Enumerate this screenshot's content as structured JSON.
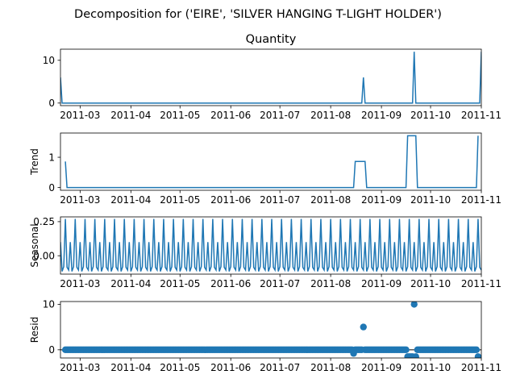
{
  "figure": {
    "suptitle": "Decomposition for ('EIRE', 'SILVER HANGING T-LIGHT HOLDER')",
    "line_color": "#1f77b4"
  },
  "chart_data": [
    {
      "type": "line",
      "title": "Quantity",
      "ylabel": "",
      "x_ticks": [
        "2011-03",
        "2011-04",
        "2011-05",
        "2011-06",
        "2011-07",
        "2011-08",
        "2011-09",
        "2011-10",
        "2011-11"
      ],
      "xlim": [
        "2011-02-17",
        "2011-11-01"
      ],
      "y_ticks": [
        0,
        10
      ],
      "ylim": [
        -0.6,
        12.6
      ],
      "x_range": [
        "2011-02-17",
        "2011-11-01"
      ],
      "points": [
        [
          "2011-02-17",
          6
        ],
        [
          "2011-02-18",
          0
        ],
        [
          "2011-08-20",
          0
        ],
        [
          "2011-08-21",
          6
        ],
        [
          "2011-08-22",
          0
        ],
        [
          "2011-09-20",
          0
        ],
        [
          "2011-09-21",
          12
        ],
        [
          "2011-09-22",
          0
        ],
        [
          "2011-10-31",
          0
        ],
        [
          "2011-11-01",
          12
        ]
      ]
    },
    {
      "type": "line",
      "title": "",
      "ylabel": "Trend",
      "x_ticks": [
        "2011-03",
        "2011-04",
        "2011-05",
        "2011-06",
        "2011-07",
        "2011-08",
        "2011-09",
        "2011-10",
        "2011-11"
      ],
      "xlim": [
        "2011-02-17",
        "2011-11-01"
      ],
      "y_ticks": [
        0,
        1
      ],
      "ylim": [
        -0.09,
        1.8
      ],
      "points": [
        [
          "2011-02-20",
          0.86
        ],
        [
          "2011-02-21",
          0
        ],
        [
          "2011-08-15",
          0
        ],
        [
          "2011-08-16",
          0.86
        ],
        [
          "2011-08-22",
          0.86
        ],
        [
          "2011-08-23",
          0
        ],
        [
          "2011-09-16",
          0
        ],
        [
          "2011-09-17",
          1.71
        ],
        [
          "2011-09-22",
          1.71
        ],
        [
          "2011-09-23",
          0
        ],
        [
          "2011-10-29",
          0
        ],
        [
          "2011-10-30",
          1.71
        ]
      ]
    },
    {
      "type": "line",
      "title": "",
      "ylabel": "Seasonal",
      "x_ticks": [
        "2011-03",
        "2011-04",
        "2011-05",
        "2011-06",
        "2011-07",
        "2011-08",
        "2011-09",
        "2011-10",
        "2011-11"
      ],
      "xlim": [
        "2011-02-17",
        "2011-11-01"
      ],
      "y_ticks": [
        -0.0,
        0.25
      ],
      "y_tick_labels": [
        "0.00",
        "0.25"
      ],
      "ylim": [
        -0.135,
        0.285
      ],
      "period_days": 6,
      "cycle": [
        0.1,
        -0.115,
        -0.08,
        0.27,
        -0.085,
        -0.105
      ],
      "start": "2011-02-17",
      "end": "2011-11-01"
    },
    {
      "type": "scatter",
      "title": "",
      "ylabel": "Resid",
      "x_ticks": [
        "2011-03",
        "2011-04",
        "2011-05",
        "2011-06",
        "2011-07",
        "2011-08",
        "2011-09",
        "2011-10",
        "2011-11"
      ],
      "xlim": [
        "2011-02-17",
        "2011-11-01"
      ],
      "y_ticks": [
        0,
        10
      ],
      "ylim": [
        -1.8,
        10.6
      ],
      "baseline_start": "2011-02-20",
      "baseline_end": "2011-10-30",
      "baseline_value": 0,
      "outliers": [
        [
          "2011-08-15",
          -0.8
        ],
        [
          "2011-08-21",
          5.0
        ],
        [
          "2011-09-17",
          -1.5
        ],
        [
          "2011-09-18",
          -1.5
        ],
        [
          "2011-09-19",
          -1.5
        ],
        [
          "2011-09-20",
          -1.5
        ],
        [
          "2011-09-21",
          10.0
        ],
        [
          "2011-09-22",
          -1.5
        ],
        [
          "2011-10-30",
          -1.5
        ]
      ]
    }
  ]
}
